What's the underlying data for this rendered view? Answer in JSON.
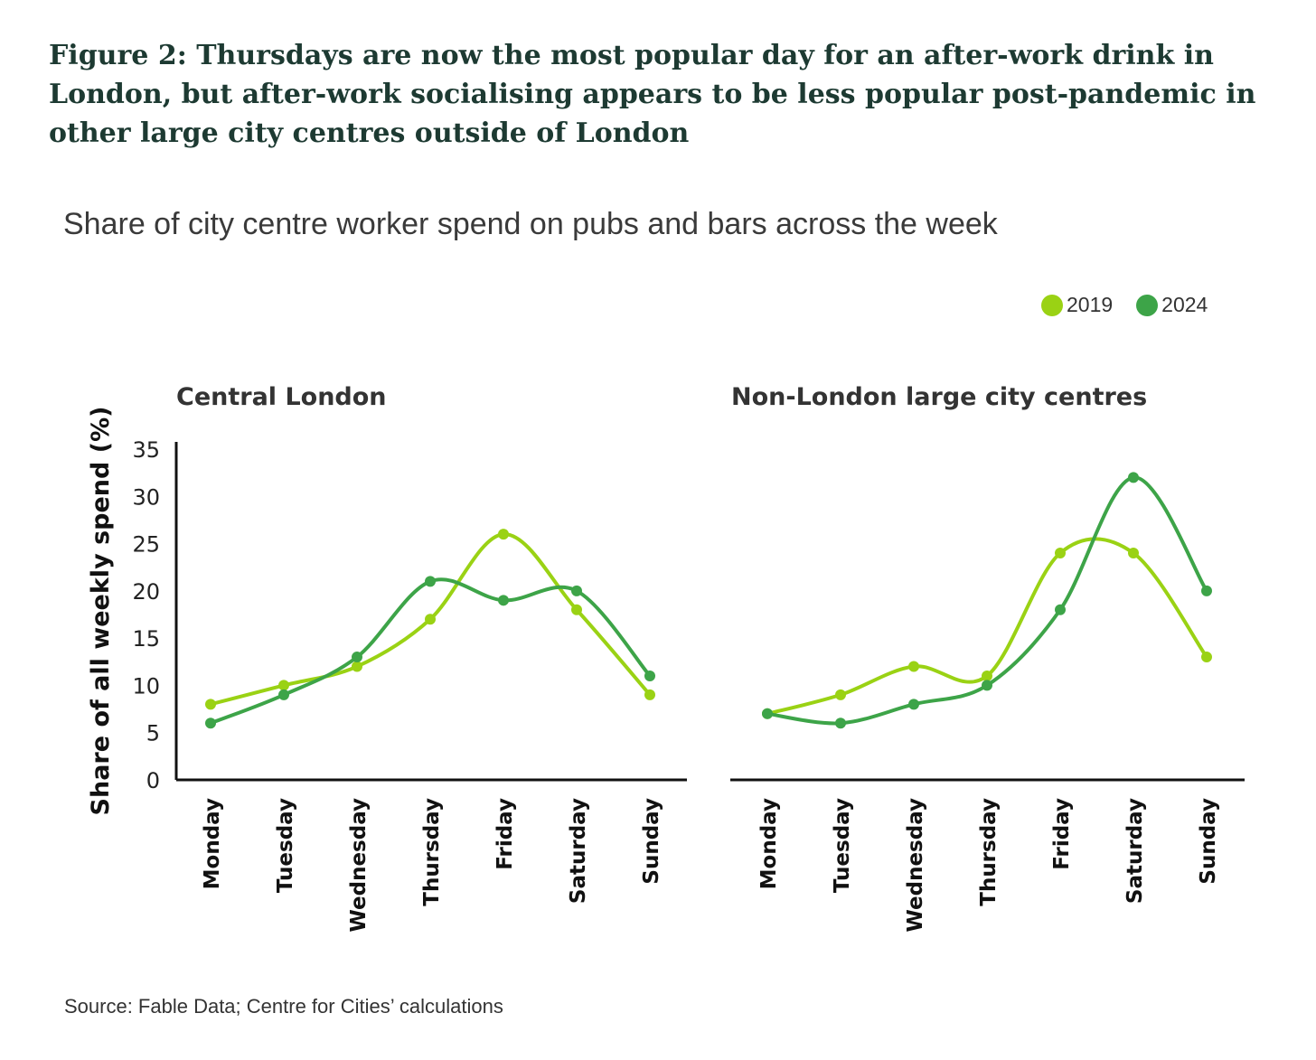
{
  "figure_title": "Figure 2: Thursdays are now the most popular day for an after-work drink in London, but after-work socialising appears to be less popular post-pandemic in other large city centres outside of London",
  "subtitle": "Share of city centre worker spend on pubs and bars across the week",
  "legend": [
    {
      "name": "2019",
      "color": "#9ad214"
    },
    {
      "name": "2024",
      "color": "#3da448"
    }
  ],
  "source": "Source: Fable Data; Centre for Cities’ calculations",
  "chart_data": [
    {
      "type": "line",
      "title": "Central London",
      "ylabel": "Share of all weekly spend (%)",
      "ylim": [
        0,
        35
      ],
      "yticks": [
        0,
        5,
        10,
        15,
        20,
        25,
        30,
        35
      ],
      "categories": [
        "Monday",
        "Tuesday",
        "Wednesday",
        "Thursday",
        "Friday",
        "Saturday",
        "Sunday"
      ],
      "series": [
        {
          "name": "2019",
          "color": "#9ad214",
          "values": [
            8,
            10,
            12,
            17,
            26,
            18,
            9
          ]
        },
        {
          "name": "2024",
          "color": "#3da448",
          "values": [
            6,
            9,
            13,
            21,
            19,
            20,
            11
          ]
        }
      ]
    },
    {
      "type": "line",
      "title": "Non-London large city centres",
      "ylim": [
        0,
        35
      ],
      "categories": [
        "Monday",
        "Tuesday",
        "Wednesday",
        "Thursday",
        "Friday",
        "Saturday",
        "Sunday"
      ],
      "series": [
        {
          "name": "2019",
          "color": "#9ad214",
          "values": [
            7,
            9,
            12,
            11,
            24,
            24,
            13
          ]
        },
        {
          "name": "2024",
          "color": "#3da448",
          "values": [
            7,
            6,
            8,
            10,
            18,
            32,
            20
          ]
        }
      ]
    }
  ]
}
